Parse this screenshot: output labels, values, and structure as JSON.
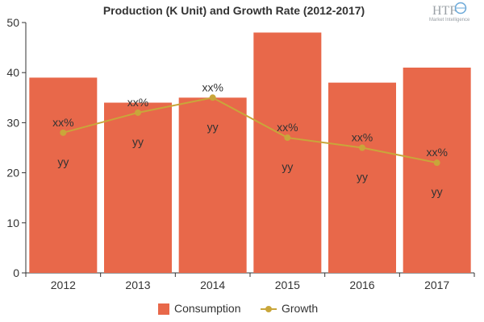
{
  "chart_data": {
    "type": "bar",
    "title": "Production (K Unit) and Growth Rate (2012-2017)",
    "categories": [
      "2012",
      "2013",
      "2014",
      "2015",
      "2016",
      "2017"
    ],
    "ylim": [
      0,
      50
    ],
    "yticks": [
      0,
      10,
      20,
      30,
      40,
      50
    ],
    "grid": false,
    "legend_position": "bottom",
    "series": [
      {
        "name": "Consumption",
        "type": "bar",
        "color": "#e8684a",
        "values": [
          39,
          34,
          35,
          48,
          38,
          41
        ],
        "labels": [
          "yy",
          "yy",
          "yy",
          "yy",
          "yy",
          "yy"
        ]
      },
      {
        "name": "Growth",
        "type": "line",
        "color": "#c9a63a",
        "values": [
          28,
          32,
          35,
          27,
          25,
          22
        ],
        "labels": [
          "xx%",
          "xx%",
          "xx%",
          "xx%",
          "xx%",
          "xx%"
        ]
      }
    ]
  },
  "logo": {
    "text": "HTF",
    "subtext": "Market Intelligence"
  }
}
